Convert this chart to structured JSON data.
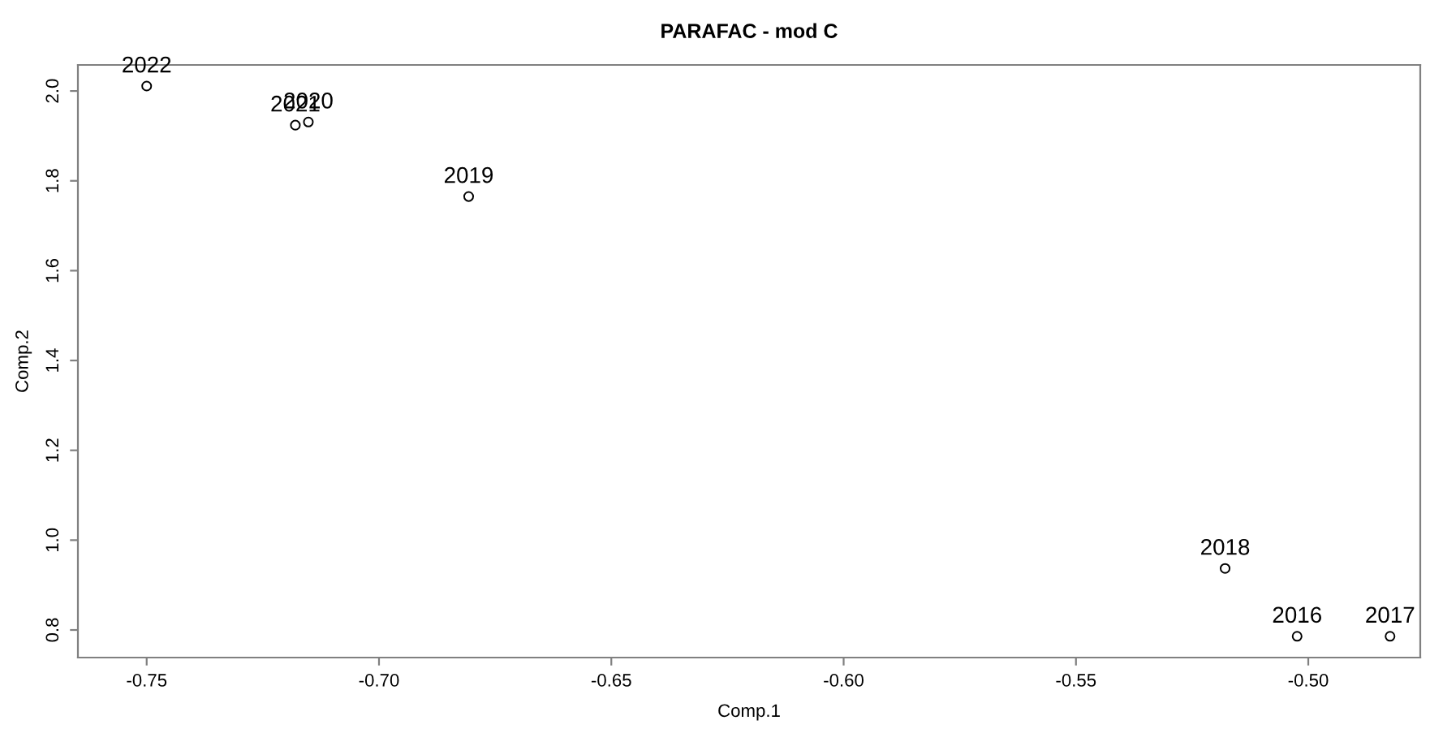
{
  "chart_data": {
    "type": "scatter",
    "title": "PARAFAC - mod C",
    "xlabel": "Comp.1",
    "ylabel": "Comp.2",
    "x": [
      -0.5024,
      -0.4824,
      -0.5179,
      -0.6807,
      -0.7152,
      -0.718,
      -0.75
    ],
    "values": [
      0.786,
      0.786,
      0.937,
      1.765,
      1.931,
      1.924,
      2.011
    ],
    "color": "#000000",
    "marker": "circle",
    "annotations": [
      {
        "text": "2016",
        "x": -0.5024,
        "y": 0.786
      },
      {
        "text": "2017",
        "x": -0.4824,
        "y": 0.786
      },
      {
        "text": "2018",
        "x": -0.5179,
        "y": 0.937
      },
      {
        "text": "2019",
        "x": -0.6807,
        "y": 1.765
      },
      {
        "text": "2020",
        "x": -0.7152,
        "y": 1.931
      },
      {
        "text": "2021",
        "x": -0.718,
        "y": 1.924
      },
      {
        "text": "2022",
        "x": -0.75,
        "y": 2.011
      }
    ],
    "xlim": [
      -0.7648,
      -0.4759
    ],
    "ylim": [
      0.7386,
      2.058
    ],
    "xticks": [
      {
        "value": -0.75,
        "label": "-0.75"
      },
      {
        "value": -0.7,
        "label": "-0.70"
      },
      {
        "value": -0.65,
        "label": "-0.65"
      },
      {
        "value": -0.6,
        "label": "-0.60"
      },
      {
        "value": -0.55,
        "label": "-0.55"
      },
      {
        "value": -0.5,
        "label": "-0.50"
      }
    ],
    "yticks": [
      {
        "value": 0.8,
        "label": "0.8"
      },
      {
        "value": 1.0,
        "label": "1.0"
      },
      {
        "value": 1.2,
        "label": "1.2"
      },
      {
        "value": 1.4,
        "label": "1.4"
      },
      {
        "value": 1.6,
        "label": "1.6"
      },
      {
        "value": 1.8,
        "label": "1.8"
      },
      {
        "value": 2.0,
        "label": "2.0"
      }
    ],
    "grid": false,
    "legend": false
  }
}
